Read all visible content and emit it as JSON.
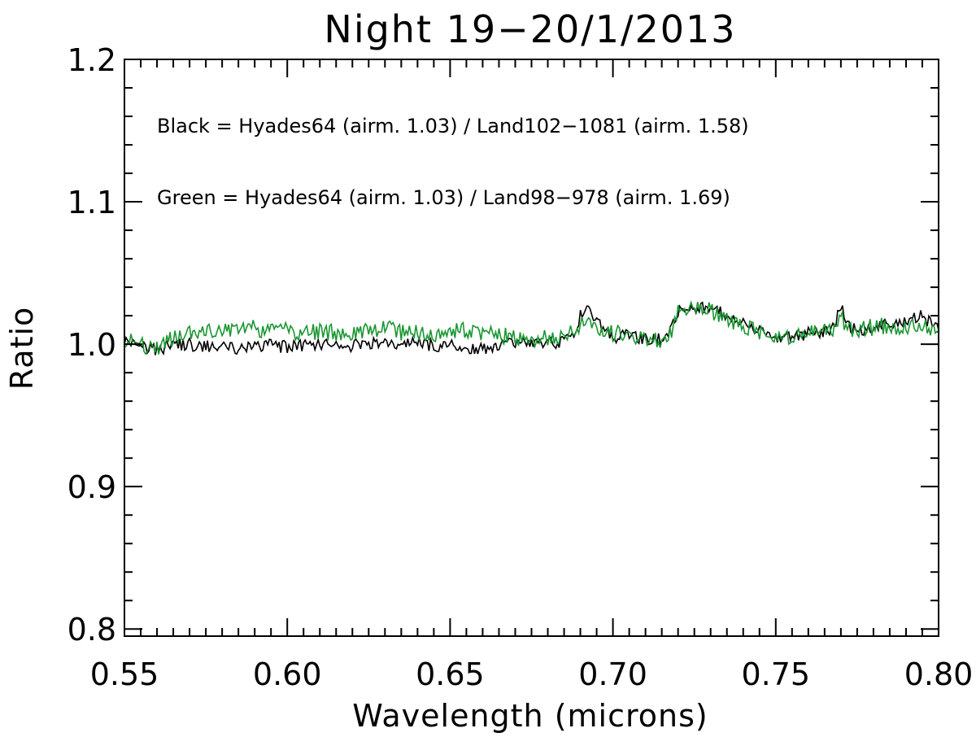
{
  "chart_data": {
    "type": "line",
    "title": "Night 19−20/1/2013",
    "xlabel": "Wavelength (microns)",
    "ylabel": "Ratio",
    "xlim": [
      0.55,
      0.8
    ],
    "ylim": [
      0.795,
      1.2
    ],
    "grid": false,
    "x_ticks": [
      0.55,
      0.6,
      0.65,
      0.7,
      0.75,
      0.8
    ],
    "x_tick_labels": [
      "0.55",
      "0.60",
      "0.65",
      "0.70",
      "0.75",
      "0.80"
    ],
    "y_ticks": [
      0.8,
      0.9,
      1.0,
      1.1,
      1.2
    ],
    "y_tick_labels": [
      "0.8",
      "0.9",
      "1.0",
      "1.1",
      "1.2"
    ],
    "annotations": [
      "Black = Hyades64 (airm. 1.03) / Land102−1081 (airm. 1.58)",
      "Green = Hyades64 (airm. 1.03) / Land98−978 (airm. 1.69)"
    ],
    "series": [
      {
        "name": "Black = Hyades64 / Land102-1081",
        "color": "#000000",
        "x": [
          0.55,
          0.555,
          0.56,
          0.565,
          0.57,
          0.575,
          0.58,
          0.585,
          0.59,
          0.595,
          0.6,
          0.605,
          0.61,
          0.615,
          0.62,
          0.625,
          0.63,
          0.635,
          0.64,
          0.645,
          0.65,
          0.655,
          0.66,
          0.665,
          0.67,
          0.675,
          0.68,
          0.685,
          0.688,
          0.69,
          0.692,
          0.695,
          0.7,
          0.705,
          0.71,
          0.715,
          0.718,
          0.72,
          0.725,
          0.73,
          0.735,
          0.74,
          0.745,
          0.75,
          0.755,
          0.76,
          0.765,
          0.768,
          0.77,
          0.772,
          0.775,
          0.78,
          0.785,
          0.79,
          0.795,
          0.8
        ],
        "y": [
          1.003,
          0.998,
          0.996,
          0.999,
          1.0,
          0.998,
          0.999,
          0.997,
          0.998,
          0.999,
          0.998,
          0.999,
          1.0,
          0.998,
          0.999,
          1.0,
          1.0,
          0.999,
          1.001,
          0.999,
          1.0,
          0.998,
          0.997,
          1.0,
          1.001,
          1.001,
          1.001,
          1.002,
          1.005,
          1.02,
          1.025,
          1.015,
          1.005,
          1.006,
          1.004,
          1.003,
          1.01,
          1.022,
          1.025,
          1.026,
          1.02,
          1.015,
          1.01,
          1.005,
          1.004,
          1.008,
          1.009,
          1.012,
          1.028,
          1.012,
          1.01,
          1.012,
          1.014,
          1.016,
          1.02,
          1.01
        ]
      },
      {
        "name": "Green = Hyades64 / Land98-978",
        "color": "#1a9632",
        "x": [
          0.55,
          0.555,
          0.56,
          0.565,
          0.57,
          0.575,
          0.58,
          0.585,
          0.59,
          0.595,
          0.6,
          0.605,
          0.61,
          0.615,
          0.62,
          0.625,
          0.63,
          0.635,
          0.64,
          0.645,
          0.65,
          0.655,
          0.66,
          0.665,
          0.67,
          0.675,
          0.68,
          0.685,
          0.688,
          0.69,
          0.692,
          0.695,
          0.7,
          0.705,
          0.71,
          0.715,
          0.718,
          0.72,
          0.725,
          0.73,
          0.735,
          0.74,
          0.745,
          0.75,
          0.755,
          0.76,
          0.765,
          0.768,
          0.77,
          0.772,
          0.775,
          0.78,
          0.785,
          0.79,
          0.795,
          0.8
        ],
        "y": [
          1.004,
          0.999,
          0.997,
          1.005,
          1.008,
          1.01,
          1.01,
          1.009,
          1.012,
          1.008,
          1.01,
          1.007,
          1.009,
          1.008,
          1.008,
          1.01,
          1.012,
          1.008,
          1.008,
          1.006,
          1.009,
          1.01,
          1.008,
          1.006,
          1.005,
          1.004,
          1.004,
          1.006,
          1.012,
          1.014,
          1.015,
          1.01,
          1.008,
          1.006,
          1.004,
          1.002,
          1.008,
          1.025,
          1.028,
          1.024,
          1.018,
          1.012,
          1.008,
          1.006,
          1.004,
          1.01,
          1.012,
          1.009,
          1.02,
          1.012,
          1.01,
          1.012,
          1.013,
          1.012,
          1.012,
          1.008
        ]
      }
    ]
  }
}
